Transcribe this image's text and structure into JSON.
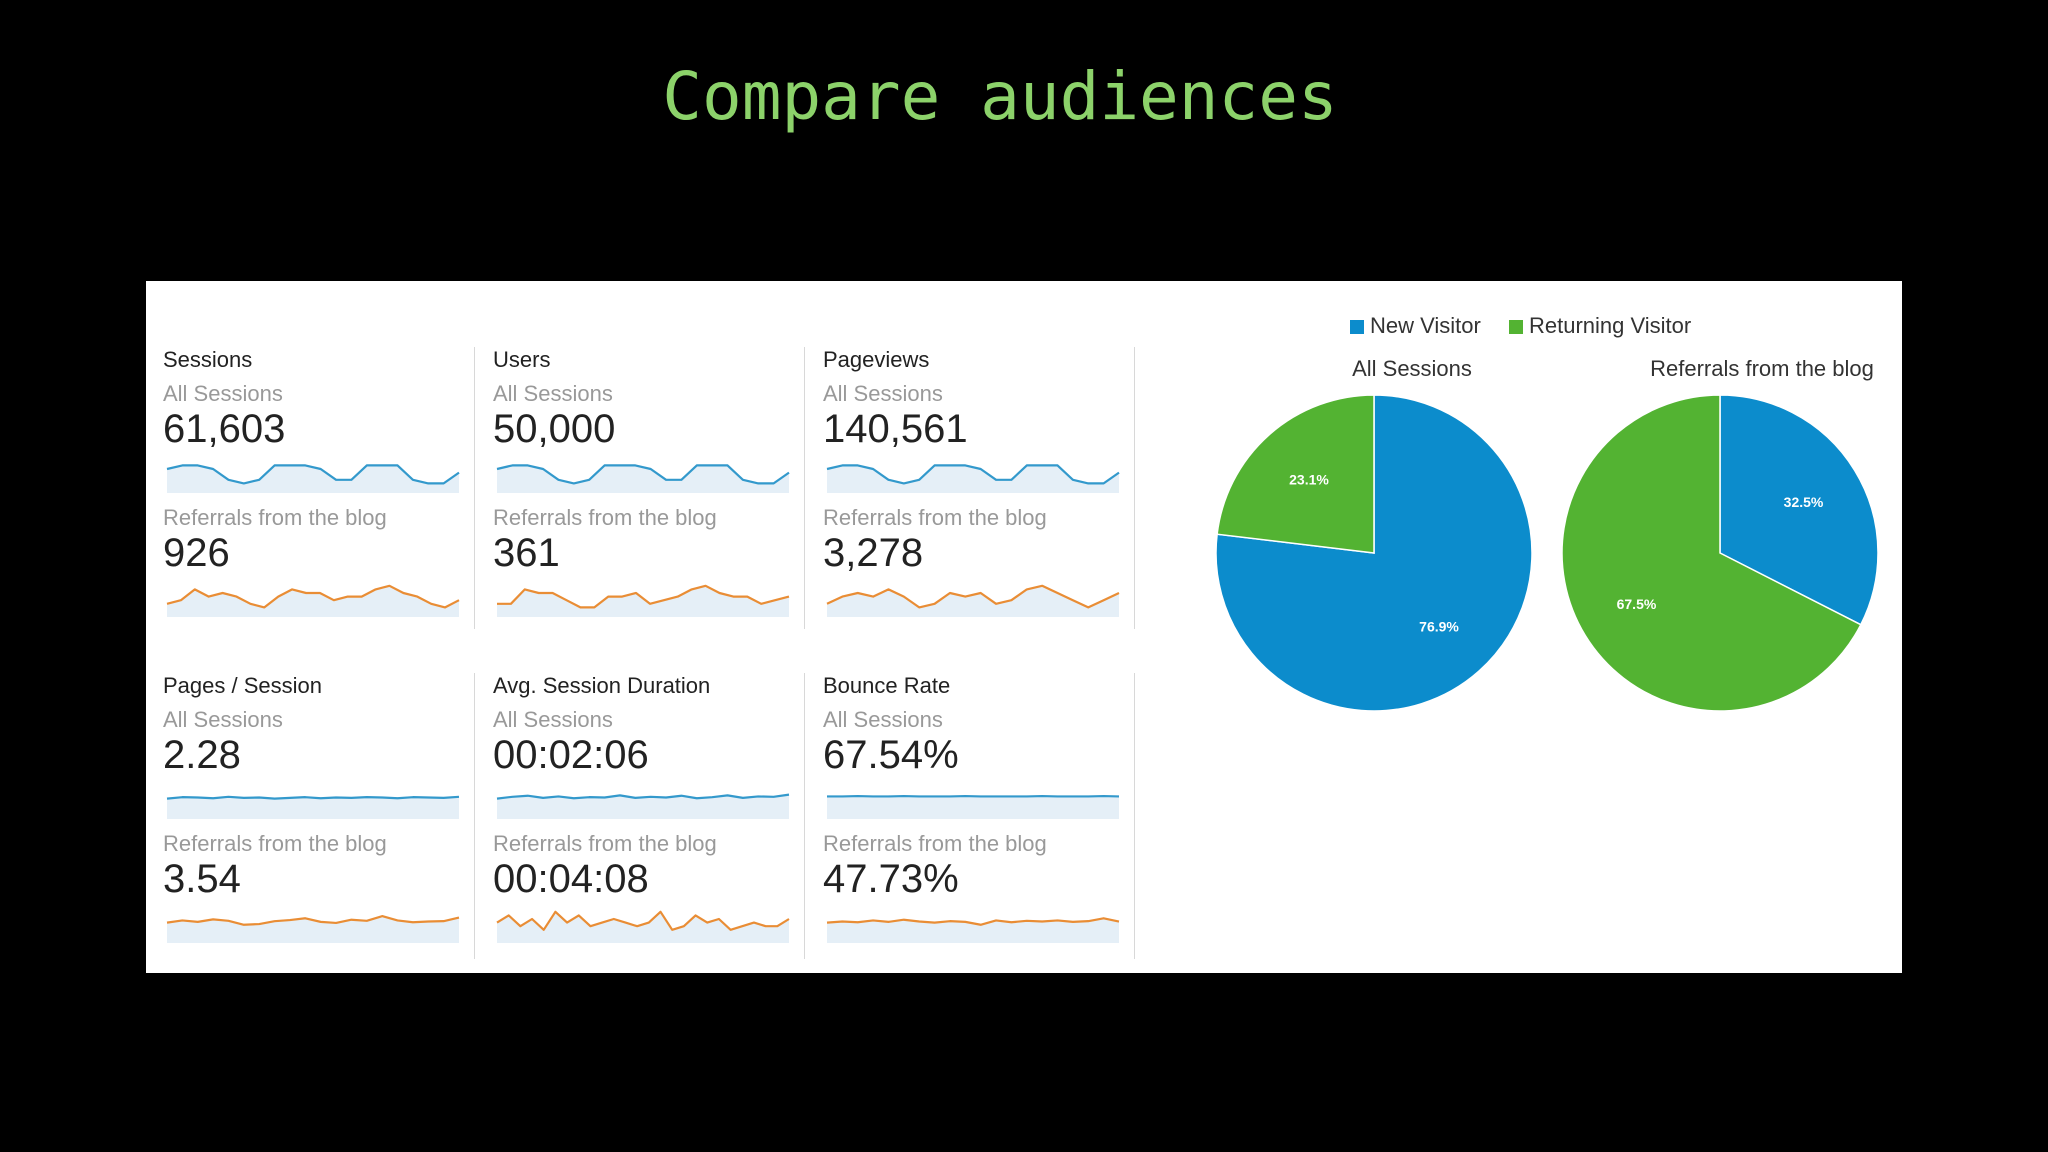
{
  "slide": {
    "title": "Compare audiences"
  },
  "segments": {
    "all": "All Sessions",
    "blog": "Referrals from the blog"
  },
  "colors": {
    "new_visitor": "#0c8ccc",
    "returning_visitor": "#53b332",
    "all_series": "#3399cc",
    "blog_series": "#e98d35",
    "area_fill": "#e5eff7"
  },
  "metrics": [
    {
      "name": "Sessions",
      "all_value": "61,603",
      "blog_value": "926",
      "all_trend": [
        5,
        6,
        6,
        5,
        2,
        1,
        2,
        6,
        6,
        6,
        5,
        2,
        2,
        6,
        6,
        6,
        2,
        1,
        1,
        4
      ],
      "blog_trend": [
        2,
        3,
        6,
        4,
        5,
        4,
        2,
        1,
        4,
        6,
        5,
        5,
        3,
        4,
        4,
        6,
        7,
        5,
        4,
        2,
        1,
        3
      ]
    },
    {
      "name": "Users",
      "all_value": "50,000",
      "blog_value": "361",
      "all_trend": [
        5,
        6,
        6,
        5,
        2,
        1,
        2,
        6,
        6,
        6,
        5,
        2,
        2,
        6,
        6,
        6,
        2,
        1,
        1,
        4
      ],
      "blog_trend": [
        2,
        2,
        6,
        5,
        5,
        3,
        1,
        1,
        4,
        4,
        5,
        2,
        3,
        4,
        6,
        7,
        5,
        4,
        4,
        2,
        3,
        4
      ]
    },
    {
      "name": "Pageviews",
      "all_value": "140,561",
      "blog_value": "3,278",
      "all_trend": [
        5,
        6,
        6,
        5,
        2,
        1,
        2,
        6,
        6,
        6,
        5,
        2,
        2,
        6,
        6,
        6,
        2,
        1,
        1,
        4
      ],
      "blog_trend": [
        2,
        4,
        5,
        4,
        6,
        4,
        1,
        2,
        5,
        4,
        5,
        2,
        3,
        6,
        7,
        5,
        3,
        1,
        3,
        5
      ]
    },
    {
      "name": "Pages / Session",
      "all_value": "2.28",
      "blog_value": "3.54",
      "all_trend": [
        4,
        4.4,
        4.3,
        4.1,
        4.5,
        4.2,
        4.3,
        4,
        4.2,
        4.4,
        4.1,
        4.3,
        4.2,
        4.4,
        4.3,
        4.1,
        4.4,
        4.3,
        4.2,
        4.5
      ],
      "blog_trend": [
        4,
        4.6,
        4.2,
        4.9,
        4.5,
        3.4,
        3.6,
        4.4,
        4.7,
        5.2,
        4.2,
        3.9,
        4.8,
        4.5,
        5.8,
        4.6,
        4.1,
        4.3,
        4.4,
        5.4
      ]
    },
    {
      "name": "Avg. Session Duration",
      "all_value": "00:02:06",
      "blog_value": "00:04:08",
      "all_trend": [
        4,
        4.5,
        4.8,
        4.2,
        4.6,
        4.1,
        4.4,
        4.3,
        4.9,
        4.2,
        4.5,
        4.3,
        4.8,
        4.1,
        4.4,
        4.9,
        4.2,
        4.6,
        4.5,
        5.1
      ],
      "blog_trend": [
        4,
        6,
        3,
        5,
        2,
        7,
        4,
        6,
        3,
        4,
        5,
        4,
        3,
        4,
        7,
        2,
        3,
        6,
        4,
        5,
        2,
        3,
        4,
        3,
        3,
        5
      ]
    },
    {
      "name": "Bounce Rate",
      "all_value": "67.54%",
      "blog_value": "47.73%",
      "all_trend": [
        4.6,
        4.6,
        4.7,
        4.6,
        4.6,
        4.7,
        4.6,
        4.6,
        4.6,
        4.7,
        4.6,
        4.6,
        4.6,
        4.6,
        4.7,
        4.6,
        4.6,
        4.6,
        4.7,
        4.6
      ],
      "blog_trend": [
        4,
        4.3,
        4.1,
        4.6,
        4.2,
        4.8,
        4.3,
        4,
        4.4,
        4.2,
        3.4,
        4.6,
        4.1,
        4.5,
        4.3,
        4.6,
        4.2,
        4.4,
        5.2,
        4.3
      ]
    }
  ],
  "legend": [
    {
      "label": "New Visitor",
      "color": "#0c8ccc"
    },
    {
      "label": "Returning Visitor",
      "color": "#53b332"
    }
  ],
  "pies": [
    {
      "title": "All Sessions",
      "new_pct": 76.9,
      "returning_pct": 23.1,
      "new_label": "76.9%",
      "returning_label": "23.1%"
    },
    {
      "title": "Referrals from the blog",
      "new_pct": 32.5,
      "returning_pct": 67.5,
      "new_label": "32.5%",
      "returning_label": "67.5%"
    }
  ]
}
